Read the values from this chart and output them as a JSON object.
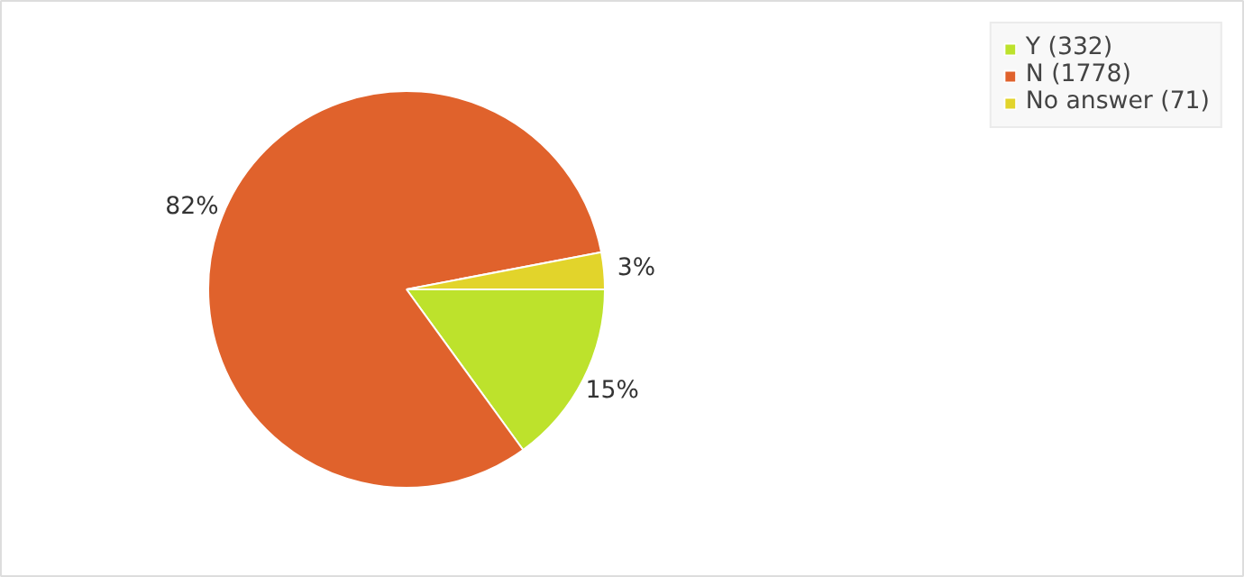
{
  "chart_data": {
    "type": "pie",
    "categories": [
      "Y (332)",
      "N (1778)",
      "No answer (71)"
    ],
    "values": [
      15,
      82,
      3
    ],
    "colors": [
      "#bde22c",
      "#e0622c",
      "#e2d42b"
    ],
    "value_labels": [
      "15%",
      "82%",
      "3%"
    ],
    "legend": "top right"
  }
}
